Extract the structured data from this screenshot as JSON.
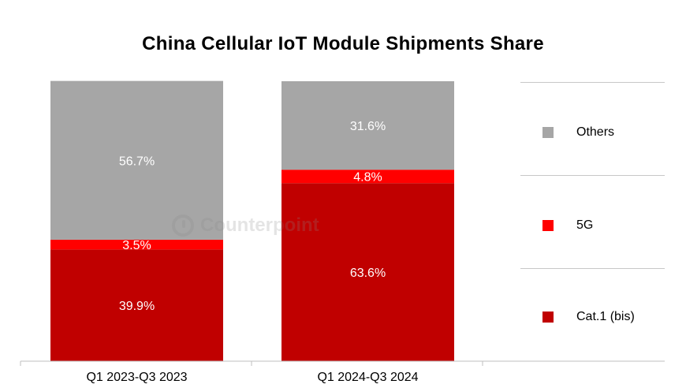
{
  "chart_data": {
    "type": "bar",
    "stacked": true,
    "title": "China Cellular IoT Module Shipments Share",
    "categories": [
      "Q1 2023-Q3 2023",
      "Q1 2024-Q3 2024"
    ],
    "series": [
      {
        "name": "Cat.1 (bis)",
        "color": "#c00000",
        "values": [
          39.9,
          63.6
        ],
        "labels": [
          "39.9%",
          "63.6%"
        ]
      },
      {
        "name": "5G",
        "color": "#ff0000",
        "values": [
          3.5,
          4.8
        ],
        "labels": [
          "3.5%",
          "4.8%"
        ]
      },
      {
        "name": "Others",
        "color": "#a6a6a6",
        "values": [
          56.7,
          31.6
        ],
        "labels": [
          "56.7%",
          "31.6%"
        ]
      }
    ],
    "legend": {
      "position": "right",
      "order": [
        "Others",
        "5G",
        "Cat.1 (bis)"
      ]
    },
    "ylim": [
      0,
      100
    ],
    "xlabel": "",
    "ylabel": ""
  },
  "watermark": "Counterpoint"
}
